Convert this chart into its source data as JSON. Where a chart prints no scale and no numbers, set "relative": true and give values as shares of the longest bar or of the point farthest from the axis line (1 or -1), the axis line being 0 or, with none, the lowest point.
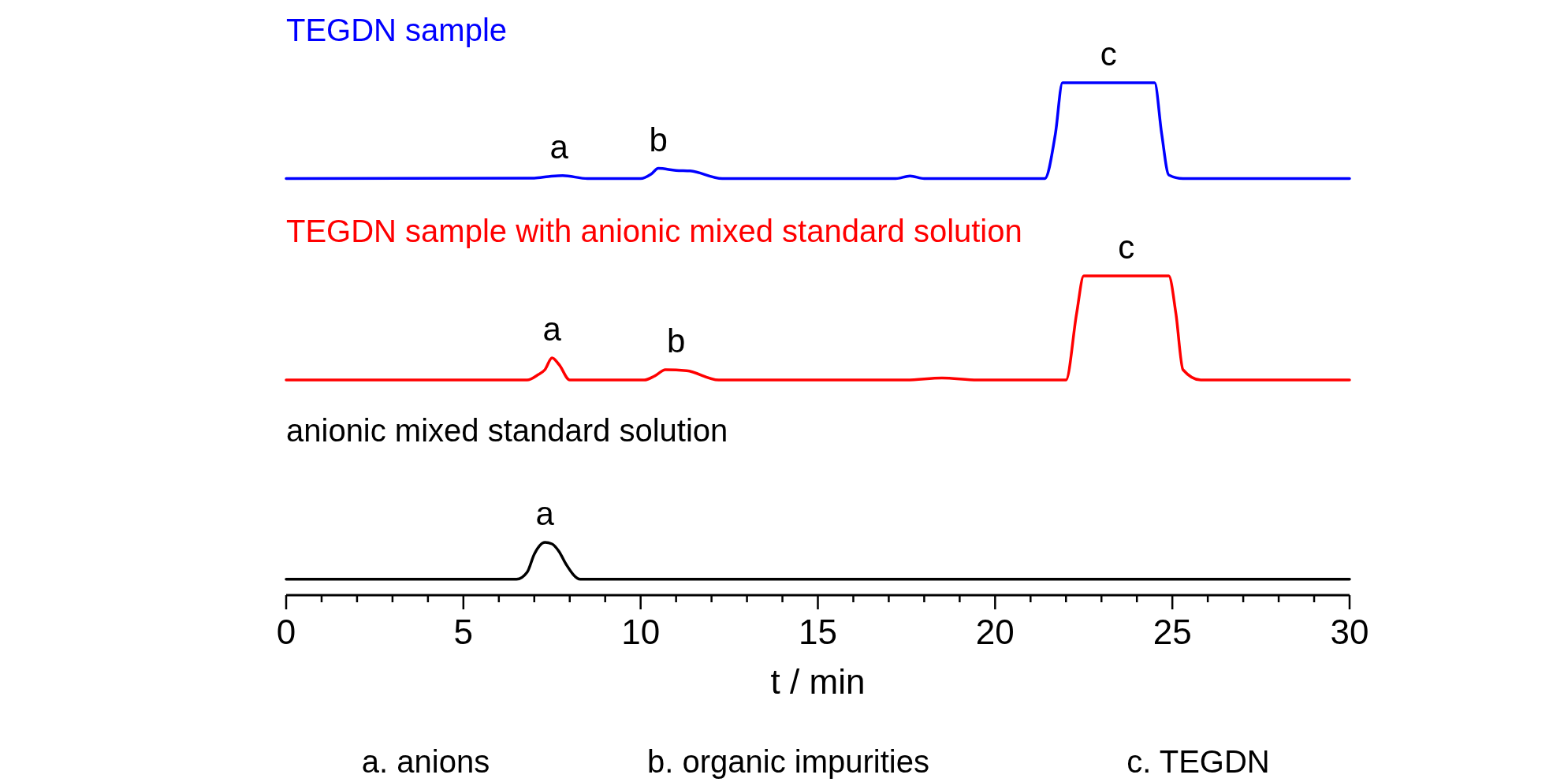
{
  "chart_data": {
    "type": "line",
    "relative": true,
    "xlabel": "t / min",
    "xlim": [
      0,
      30
    ],
    "xticks": [
      0,
      {
        "value": 1,
        "label": null
      },
      {
        "value": 2,
        "label": null
      },
      {
        "value": 3,
        "label": null
      },
      {
        "value": 4,
        "label": null
      },
      5,
      {
        "value": 6,
        "label": null
      },
      {
        "value": 7,
        "label": null
      },
      {
        "value": 8,
        "label": null
      },
      {
        "value": 9,
        "label": null
      },
      10,
      {
        "value": 11,
        "label": null
      },
      {
        "value": 12,
        "label": null
      },
      {
        "value": 13,
        "label": null
      },
      {
        "value": 14,
        "label": null
      },
      15,
      {
        "value": 16,
        "label": null
      },
      {
        "value": 17,
        "label": null
      },
      {
        "value": 18,
        "label": null
      },
      {
        "value": 19,
        "label": null
      },
      20,
      {
        "value": 21,
        "label": null
      },
      {
        "value": 22,
        "label": null
      },
      {
        "value": 23,
        "label": null
      },
      {
        "value": 24,
        "label": null
      },
      25,
      {
        "value": 26,
        "label": null
      },
      {
        "value": 27,
        "label": null
      },
      {
        "value": 28,
        "label": null
      },
      {
        "value": 29,
        "label": null
      },
      30
    ],
    "series": [
      {
        "name": "TEGDN sample",
        "color": "#0000ff",
        "x": [
          0,
          7.0,
          7.4,
          7.8,
          8.5,
          10.0,
          10.3,
          10.5,
          11.0,
          11.4,
          12.3,
          17.2,
          17.6,
          18.0,
          21.4,
          21.7,
          21.9,
          24.5,
          24.7,
          24.9,
          25.3,
          30
        ],
        "values": [
          0.813,
          0.814,
          0.817,
          0.819,
          0.813,
          0.813,
          0.822,
          0.833,
          0.829,
          0.828,
          0.813,
          0.813,
          0.818,
          0.813,
          0.813,
          0.9,
          1.0,
          1.0,
          0.9,
          0.82,
          0.813,
          0.813
        ]
      },
      {
        "name": "TEGDN sample with anionic mixed standard solution",
        "color": "#ff0000",
        "x": [
          0,
          6.8,
          7.1,
          7.3,
          7.5,
          7.7,
          8.0,
          10.1,
          10.4,
          10.7,
          11.3,
          12.2,
          17.5,
          18.5,
          19.5,
          22.0,
          22.3,
          22.5,
          24.9,
          25.1,
          25.3,
          25.8,
          30
        ],
        "values": [
          0.42,
          0.42,
          0.43,
          0.44,
          0.463,
          0.45,
          0.42,
          0.42,
          0.428,
          0.44,
          0.438,
          0.42,
          0.42,
          0.424,
          0.42,
          0.42,
          0.55,
          0.623,
          0.623,
          0.55,
          0.44,
          0.42,
          0.42
        ]
      },
      {
        "name": "anionic mixed standard solution",
        "color": "#000000",
        "x": [
          0,
          6.5,
          6.8,
          7.0,
          7.3,
          7.5,
          7.7,
          7.9,
          8.3,
          30
        ],
        "values": [
          0.031,
          0.031,
          0.045,
          0.08,
          0.103,
          0.1,
          0.085,
          0.06,
          0.031,
          0.031
        ]
      }
    ],
    "annotations": [
      {
        "text": "a",
        "x": 7.7,
        "y": 0.819
      },
      {
        "text": "b",
        "x": 10.5,
        "y": 0.833
      },
      {
        "text": "c",
        "x": 23.2,
        "y": 1.0
      },
      {
        "text": "a",
        "x": 7.5,
        "y": 0.463
      },
      {
        "text": "b",
        "x": 11.0,
        "y": 0.44
      },
      {
        "text": "c",
        "x": 23.7,
        "y": 0.623
      },
      {
        "text": "a",
        "x": 7.3,
        "y": 0.103
      },
      "a. anions",
      "b. organic impurities",
      "c. TEGDN"
    ]
  }
}
